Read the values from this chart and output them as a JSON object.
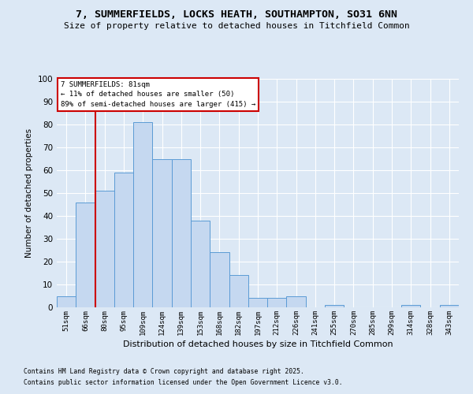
{
  "title1": "7, SUMMERFIELDS, LOCKS HEATH, SOUTHAMPTON, SO31 6NN",
  "title2": "Size of property relative to detached houses in Titchfield Common",
  "xlabel": "Distribution of detached houses by size in Titchfield Common",
  "ylabel": "Number of detached properties",
  "categories": [
    "51sqm",
    "66sqm",
    "80sqm",
    "95sqm",
    "109sqm",
    "124sqm",
    "139sqm",
    "153sqm",
    "168sqm",
    "182sqm",
    "197sqm",
    "212sqm",
    "226sqm",
    "241sqm",
    "255sqm",
    "270sqm",
    "285sqm",
    "299sqm",
    "314sqm",
    "328sqm",
    "343sqm"
  ],
  "values": [
    5,
    46,
    51,
    59,
    81,
    65,
    65,
    38,
    24,
    14,
    4,
    4,
    5,
    0,
    1,
    0,
    0,
    0,
    1,
    0,
    1
  ],
  "bar_color": "#c5d8f0",
  "bar_edge_color": "#5b9bd5",
  "vline_x_index": 1.5,
  "vline_color": "#cc0000",
  "annotation_title": "7 SUMMERFIELDS: 81sqm",
  "annotation_line1": "← 11% of detached houses are smaller (50)",
  "annotation_line2": "89% of semi-detached houses are larger (415) →",
  "annotation_box_color": "#cc0000",
  "ylim": [
    0,
    100
  ],
  "yticks": [
    0,
    10,
    20,
    30,
    40,
    50,
    60,
    70,
    80,
    90,
    100
  ],
  "background_color": "#dce8f5",
  "grid_color": "#ffffff",
  "footnote1": "Contains HM Land Registry data © Crown copyright and database right 2025.",
  "footnote2": "Contains public sector information licensed under the Open Government Licence v3.0."
}
